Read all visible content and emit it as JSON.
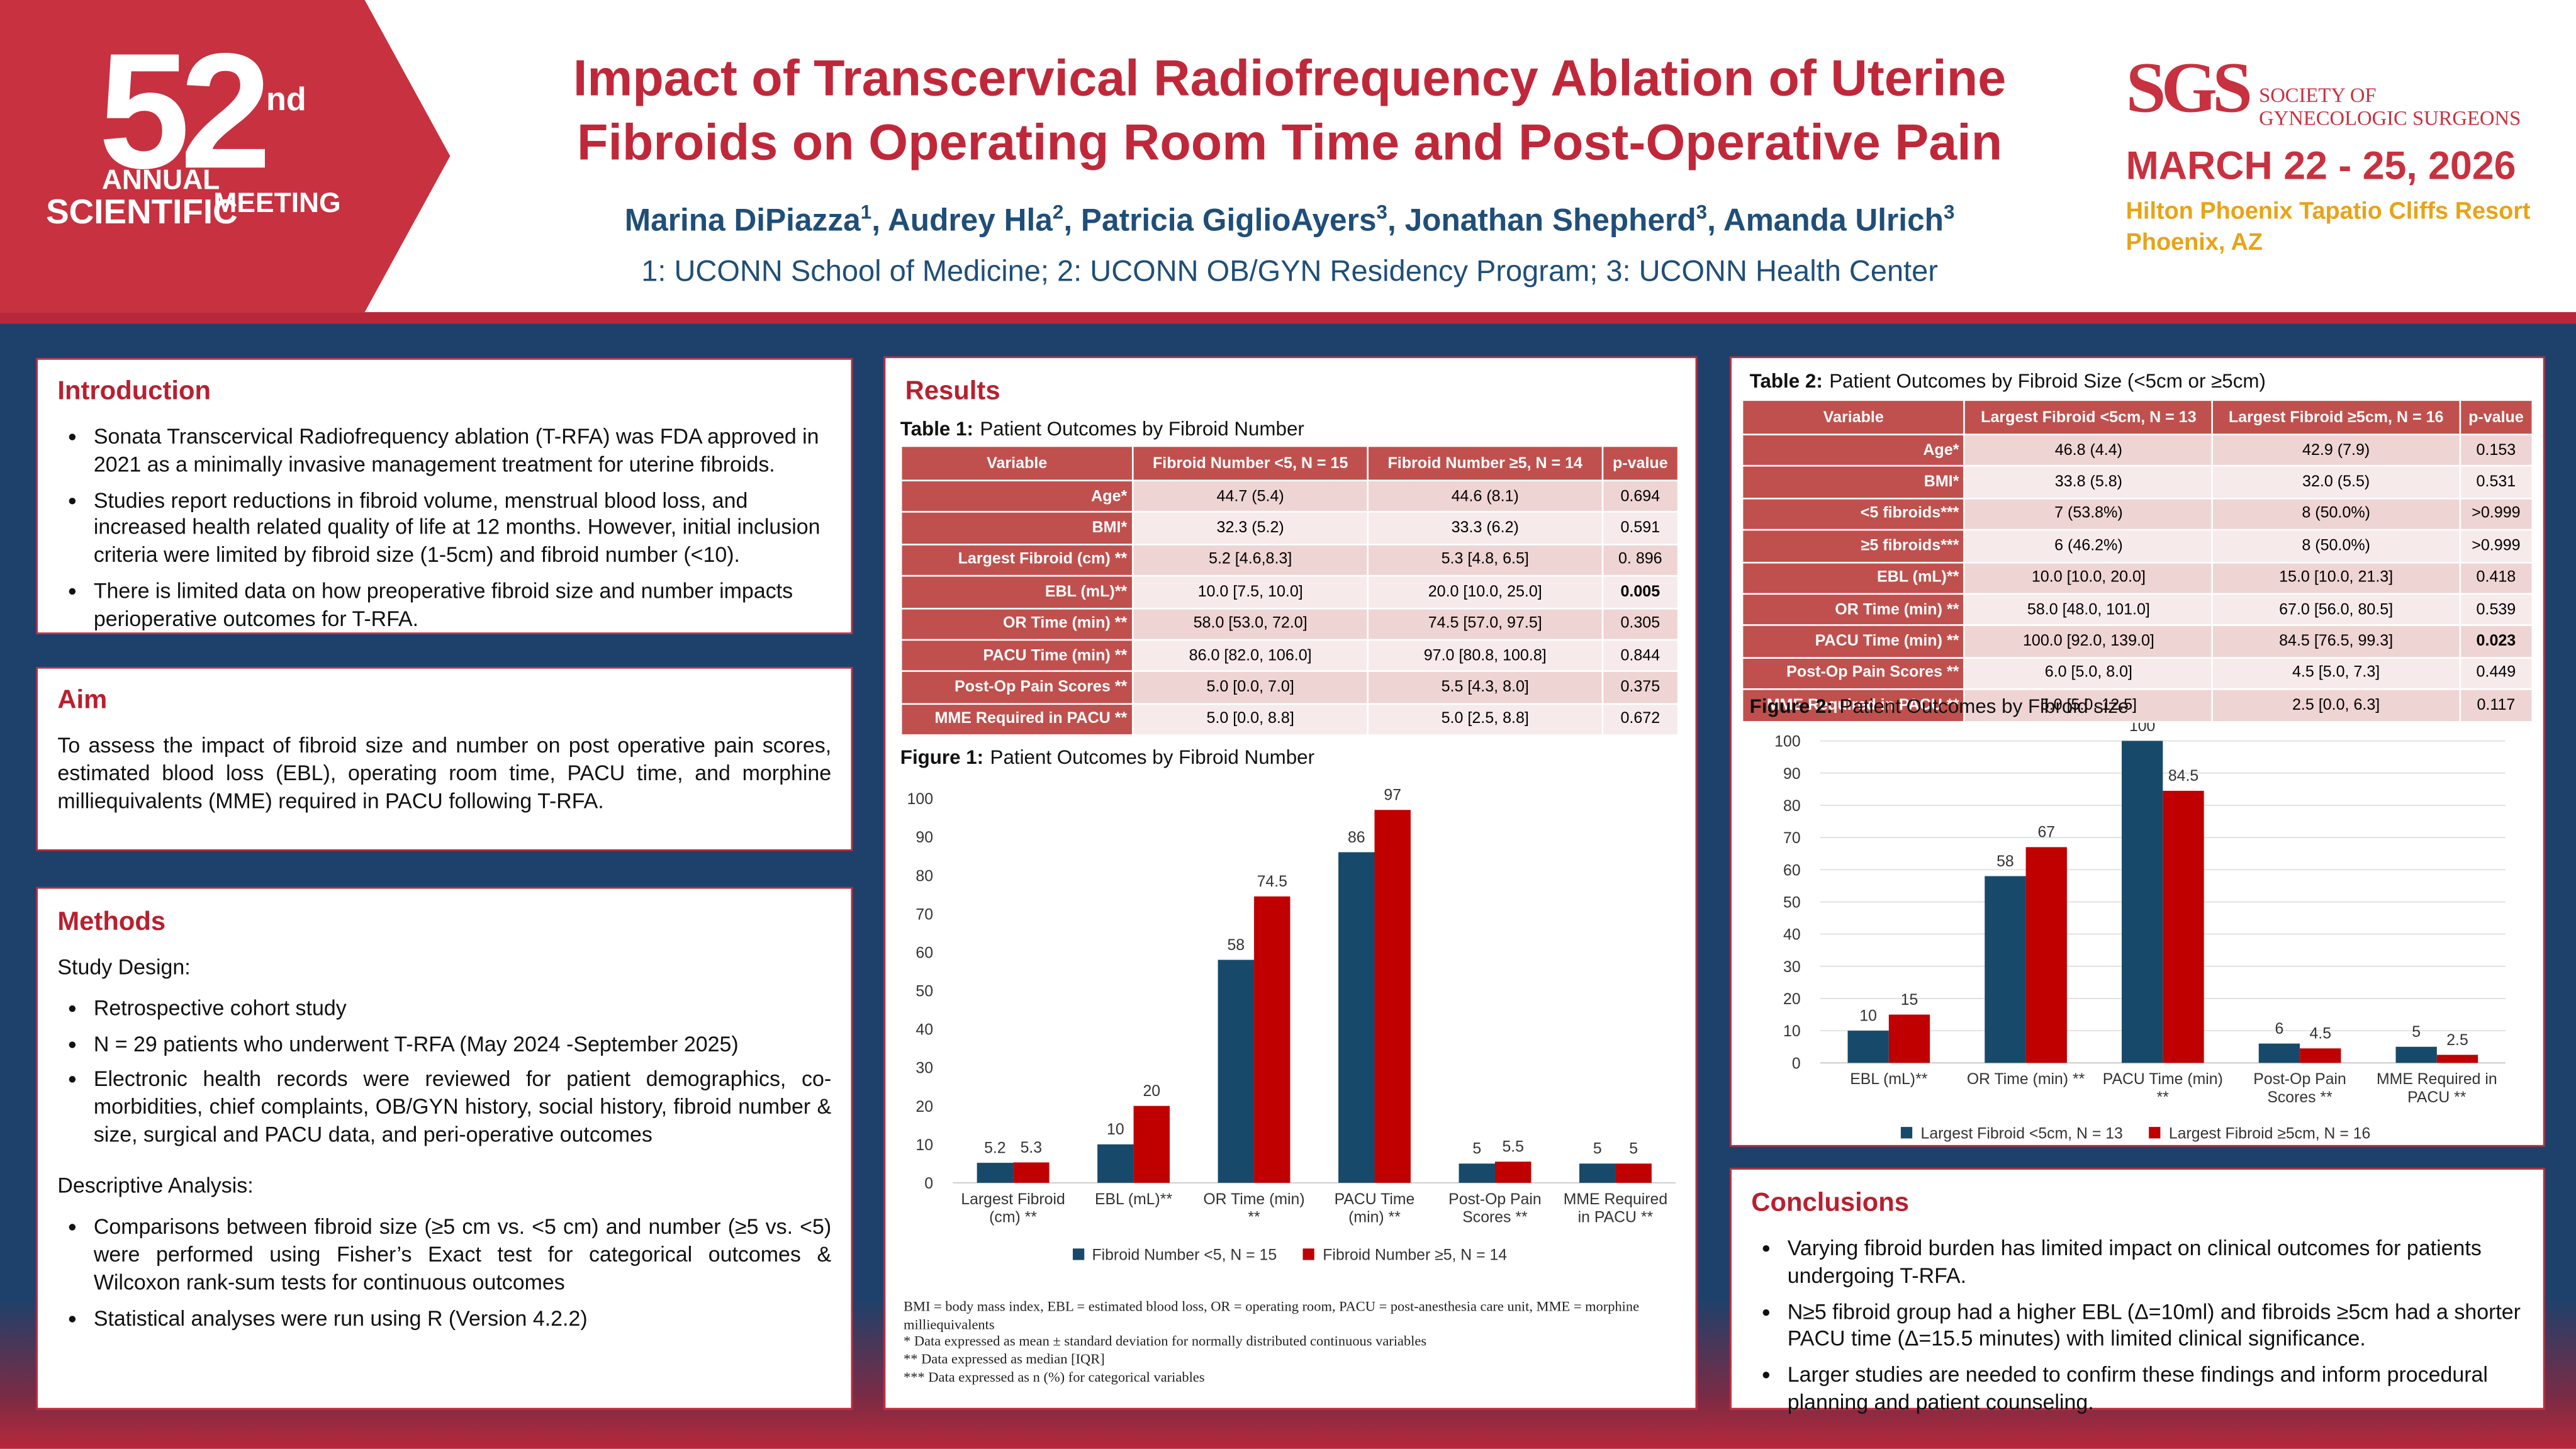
{
  "logo": {
    "number": "52",
    "suffix": "nd",
    "line1": "ANNUAL",
    "line2": "SCIENTIFIC",
    "line3": "MEETING"
  },
  "header": {
    "title": "Impact of Transcervical Radiofrequency Ablation of Uterine Fibroids on Operating Room Time and Post-Operative Pain",
    "authors": [
      {
        "name": "Marina DiPiazza",
        "affil": "1",
        "after": ", "
      },
      {
        "name": "Audrey Hla",
        "affil": "2",
        "after": ", "
      },
      {
        "name": "Patricia GiglioAyers",
        "affil": "3",
        "after": ", "
      },
      {
        "name": "Jonathan Shepherd",
        "affil": "3",
        "after": ", "
      },
      {
        "name": "Amanda Ulrich",
        "affil": "3"
      }
    ],
    "affiliations": "1: UCONN School of Medicine; 2: UCONN OB/GYN Residency Program; 3: UCONN Health Center"
  },
  "sponsor": {
    "mark": "SGS",
    "line1": "SOCIETY OF",
    "line2": "GYNECOLOGIC SURGEONS",
    "date": "MARCH 22 - 25, 2026",
    "venue": "Hilton Phoenix Tapatio Cliffs Resort",
    "city": "Phoenix, AZ"
  },
  "introduction": {
    "title": "Introduction",
    "bullets": [
      "Sonata Transcervical Radiofrequency ablation (T-RFA) was FDA approved in 2021 as a minimally invasive management treatment for uterine fibroids.",
      "Studies report reductions in fibroid volume, menstrual blood loss, and increased health related quality of life at 12 months. However, initial inclusion criteria were limited by fibroid size (1-5cm) and fibroid number (<10).",
      "There is limited data on how preoperative fibroid size and number impacts perioperative outcomes for T-RFA."
    ]
  },
  "aim": {
    "title": "Aim",
    "text": "To assess the impact of fibroid size and number on post operative pain scores, estimated blood loss (EBL), operating room time, PACU time, and morphine milliequivalents (MME) required in PACU following T-RFA."
  },
  "methods": {
    "title": "Methods",
    "design_label": "Study Design:",
    "design_bullets": [
      "Retrospective cohort study",
      "N = 29 patients who underwent T-RFA (May 2024 -September 2025)",
      "Electronic health records were reviewed for patient demographics, co-morbidities, chief complaints, OB/GYN history, social history, fibroid number & size, surgical and PACU data, and peri-operative outcomes"
    ],
    "analysis_label": "Descriptive Analysis:",
    "analysis_bullets": [
      "Comparisons between fibroid size (≥5 cm vs. <5 cm) and number (≥5 vs. <5) were performed using Fisher’s Exact test for categorical outcomes & Wilcoxon rank-sum tests for continuous outcomes",
      "Statistical analyses were run using R (Version 4.2.2)"
    ]
  },
  "results": {
    "title": "Results",
    "table1": {
      "label": "Table 1:",
      "caption": "Patient Outcomes by Fibroid Number",
      "header": [
        "Variable",
        "Fibroid Number <5, N = 15",
        "Fibroid Number ≥5, N = 14",
        "p-value"
      ],
      "rows": [
        [
          "Age*",
          "44.7 (5.4)",
          "44.6 (8.1)",
          "0.694"
        ],
        [
          "BMI*",
          "32.3 (5.2)",
          "33.3 (6.2)",
          "0.591"
        ],
        [
          "Largest Fibroid (cm) **",
          "5.2 [4.6,8.3]",
          "5.3 [4.8, 6.5]",
          "0. 896"
        ],
        [
          "EBL (mL)**",
          "10.0 [7.5, 10.0]",
          "20.0 [10.0, 25.0]",
          "0.005"
        ],
        [
          "OR Time (min) **",
          "58.0 [53.0, 72.0]",
          "74.5 [57.0, 97.5]",
          "0.305"
        ],
        [
          "PACU Time (min) **",
          "86.0 [82.0, 106.0]",
          "97.0 [80.8, 100.8]",
          "0.844"
        ],
        [
          "Post-Op Pain Scores **",
          "5.0 [0.0, 7.0]",
          "5.5 [4.3, 8.0]",
          "0.375"
        ],
        [
          "MME Required in PACU **",
          "5.0 [0.0, 8.8]",
          "5.0 [2.5, 8.8]",
          "0.672"
        ]
      ],
      "bold_cells": [
        [
          3,
          3
        ]
      ]
    },
    "table2": {
      "label": "Table 2:",
      "caption": "Patient Outcomes by Fibroid Size (<5cm or ≥5cm)",
      "header": [
        "Variable",
        "Largest Fibroid <5cm, N = 13",
        "Largest Fibroid ≥5cm, N = 16",
        "p-value"
      ],
      "rows": [
        [
          "Age*",
          "46.8 (4.4)",
          "42.9 (7.9)",
          "0.153"
        ],
        [
          "BMI*",
          "33.8 (5.8)",
          "32.0 (5.5)",
          "0.531"
        ],
        [
          "<5 fibroids***",
          "7 (53.8%)",
          "8 (50.0%)",
          ">0.999"
        ],
        [
          "≥5 fibroids***",
          "6 (46.2%)",
          "8 (50.0%)",
          ">0.999"
        ],
        [
          "EBL (mL)**",
          "10.0 [10.0, 20.0]",
          "15.0 [10.0, 21.3]",
          "0.418"
        ],
        [
          "OR Time (min) **",
          "58.0 [48.0, 101.0]",
          "67.0 [56.0, 80.5]",
          "0.539"
        ],
        [
          "PACU Time (min) **",
          "100.0 [92.0, 139.0]",
          "84.5 [76.5, 99.3]",
          "0.023"
        ],
        [
          "Post-Op Pain Scores **",
          "6.0 [5.0, 8.0]",
          "4.5 [5.0, 7.3]",
          "0.449"
        ],
        [
          "MME Required in PACU **",
          "5.0 [5.0, 12.5]",
          "2.5 [0.0, 6.3]",
          "0.117"
        ]
      ],
      "bold_cells": [
        [
          6,
          3
        ]
      ]
    },
    "footnotes": [
      "BMI = body mass index, EBL = estimated blood loss, OR = operating room, PACU = post-anesthesia care unit, MME = morphine milliequivalents",
      "* Data expressed as mean ± standard deviation for normally distributed continuous variables",
      "** Data expressed as median [IQR]",
      "*** Data expressed as n (%) for categorical variables"
    ]
  },
  "conclusions": {
    "title": "Conclusions",
    "bullets": [
      "Varying fibroid burden has limited impact on clinical outcomes for patients undergoing T-RFA.",
      "N≥5 fibroid group had a higher EBL (Δ=10ml) and fibroids ≥5cm had a shorter PACU time (Δ=15.5 minutes) with limited clinical significance.",
      "Larger studies are needed to confirm these findings and inform procedural planning and patient counseling."
    ]
  },
  "chart_data": [
    {
      "type": "bar",
      "caption_label": "Figure 1:",
      "title": "Patient Outcomes by Fibroid Number",
      "categories": [
        "Largest Fibroid (cm) **",
        "EBL (mL)**",
        "OR Time (min) **",
        "PACU Time (min) **",
        "Post-Op Pain Scores **",
        "MME Required in PACU **"
      ],
      "series": [
        {
          "name": "Fibroid Number <5, N = 15",
          "color": "#174a6a",
          "values": [
            5.2,
            10,
            58,
            86,
            5,
            5
          ]
        },
        {
          "name": "Fibroid Number ≥5, N = 14",
          "color": "#c00000",
          "values": [
            5.3,
            20,
            74.5,
            97,
            5.5,
            5
          ]
        }
      ],
      "ylim": [
        0,
        100
      ],
      "yticks": [
        0,
        10,
        20,
        30,
        40,
        50,
        60,
        70,
        80,
        90,
        100
      ],
      "grid": false,
      "legend": "bottom"
    },
    {
      "type": "bar",
      "caption_label": "Figure 2:",
      "title": "Patient Outcomes by Fibroid size",
      "categories": [
        "EBL (mL)**",
        "OR Time (min) **",
        "PACU Time (min) **",
        "Post-Op Pain Scores **",
        "MME Required in PACU **"
      ],
      "series": [
        {
          "name": "Largest Fibroid <5cm, N = 13",
          "color": "#174a6a",
          "values": [
            10,
            58,
            100,
            6,
            5
          ]
        },
        {
          "name": "Largest Fibroid ≥5cm, N = 16",
          "color": "#c00000",
          "values": [
            15,
            67,
            84.5,
            4.5,
            2.5
          ]
        }
      ],
      "ylim": [
        0,
        100
      ],
      "yticks": [
        0,
        10,
        20,
        30,
        40,
        50,
        60,
        70,
        80,
        90,
        100
      ],
      "grid": true,
      "legend": "bottom"
    }
  ]
}
